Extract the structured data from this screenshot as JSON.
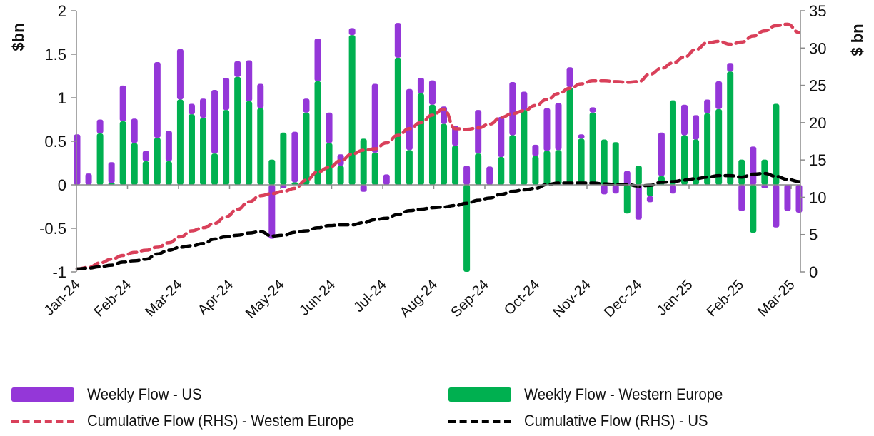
{
  "chart_data": {
    "type": "bar",
    "subtype": "stacked bar with dual-axis dashed lines",
    "title": "",
    "ylabel_left": "$bn",
    "ylabel_right": "$ bn",
    "ylim_left": [
      -1,
      2
    ],
    "yticks_left": [
      -1,
      -0.5,
      0,
      0.5,
      1,
      1.5,
      2
    ],
    "ytick_labels_left": [
      "-1",
      "-0.5",
      "0",
      "0.5",
      "1",
      "1.5",
      "2"
    ],
    "ylim_right": [
      0,
      35
    ],
    "yticks_right": [
      0,
      5,
      10,
      15,
      20,
      25,
      30,
      35
    ],
    "ytick_labels_right": [
      "0",
      "5",
      "10",
      "15",
      "20",
      "25",
      "30",
      "35"
    ],
    "x_month_labels": [
      "Jan-24",
      "Feb-24",
      "Mar-24",
      "Apr-24",
      "May-24",
      "Jun-24",
      "Jul-24",
      "Aug-24",
      "Sep-24",
      "Oct-24",
      "Nov-24",
      "Dec-24",
      "Jan-25",
      "Feb-25",
      "Mar-25"
    ],
    "weeks": 64,
    "grid": false,
    "legend_position": "bottom",
    "series": [
      {
        "name": "Weekly Flow - US",
        "type": "bar",
        "axis": "left",
        "color": "#9437D8",
        "values": [
          0.58,
          0.13,
          0.16,
          0.24,
          0.41,
          0.28,
          0.12,
          0.87,
          0.35,
          0.58,
          0.12,
          0.22,
          0.73,
          0.37,
          0.18,
          0.47,
          0.28,
          -0.62,
          -0.04,
          0.58,
          0.16,
          0.49,
          0.35,
          0.13,
          0.08,
          -0.08,
          0.79,
          0.12,
          0.4,
          0.7,
          0.18,
          0.28,
          0.2,
          0.23,
          0.22,
          0.5,
          0.21,
          0.46,
          0.61,
          0.21,
          0.13,
          0.49,
          0.54,
          0.23,
          0.05,
          0.06,
          -0.11,
          -0.1,
          0.16,
          -0.4,
          -0.07,
          0.5,
          -0.1,
          0.35,
          0.28,
          0.16,
          0.32,
          0.1,
          -0.3,
          0.44,
          -0.04,
          -0.49,
          -0.3,
          -0.32
        ]
      },
      {
        "name": "Weekly Flow - Western Europe",
        "type": "bar",
        "axis": "left",
        "color": "#00B050",
        "values": [
          0.0,
          0.0,
          0.59,
          0.02,
          0.73,
          0.48,
          0.27,
          0.54,
          0.27,
          0.98,
          0.81,
          0.77,
          0.36,
          0.86,
          1.24,
          0.96,
          0.88,
          0.29,
          0.6,
          0.03,
          0.83,
          1.19,
          0.48,
          0.22,
          1.72,
          0.53,
          0.37,
          0.0,
          1.46,
          0.4,
          1.05,
          0.92,
          0.7,
          0.45,
          -1.0,
          0.36,
          0.0,
          0.32,
          0.57,
          0.86,
          0.33,
          0.39,
          0.4,
          1.12,
          0.53,
          0.83,
          0.52,
          0.49,
          -0.33,
          0.22,
          -0.13,
          0.1,
          0.97,
          0.57,
          0.52,
          0.82,
          0.87,
          1.3,
          0.29,
          -0.55,
          0.29,
          0.93,
          0.0,
          0.0
        ]
      },
      {
        "name": "Cumulative Flow (RHS) - Westem Europe",
        "type": "line",
        "style": "dashed",
        "axis": "right",
        "color": "#D9405A",
        "values": [
          0.4,
          0.6,
          1.2,
          1.7,
          2.2,
          2.6,
          2.9,
          3.3,
          3.9,
          4.7,
          5.5,
          5.9,
          6.5,
          7.4,
          8.4,
          9.4,
          10.2,
          10.5,
          10.8,
          11.2,
          12.3,
          13.4,
          14.0,
          14.9,
          15.8,
          16.3,
          16.5,
          17.3,
          18.3,
          19.2,
          20.0,
          21.0,
          21.8,
          19.2,
          19.1,
          19.3,
          19.8,
          20.7,
          21.2,
          21.6,
          22.3,
          23.1,
          23.9,
          24.6,
          25.2,
          25.6,
          25.6,
          25.5,
          25.4,
          25.5,
          26.5,
          27.3,
          28.0,
          28.8,
          29.8,
          30.7,
          30.9,
          30.5,
          30.8,
          31.6,
          32.3,
          33.0,
          33.2,
          32.1
        ]
      },
      {
        "name": "Cumulative Flow (RHS) - US",
        "type": "line",
        "style": "dashed",
        "axis": "right",
        "color": "#000000",
        "values": [
          0.4,
          0.5,
          0.7,
          0.9,
          1.3,
          1.5,
          1.7,
          2.4,
          2.9,
          3.3,
          3.5,
          3.8,
          4.4,
          4.7,
          4.9,
          5.2,
          5.4,
          4.8,
          4.9,
          5.3,
          5.5,
          5.9,
          6.2,
          6.3,
          6.3,
          6.6,
          7.0,
          7.2,
          7.7,
          8.2,
          8.4,
          8.6,
          8.7,
          8.9,
          9.2,
          9.6,
          9.9,
          10.4,
          10.8,
          11.0,
          11.2,
          11.7,
          11.9,
          11.9,
          11.9,
          11.9,
          11.8,
          11.7,
          11.7,
          11.5,
          11.6,
          12.0,
          12.1,
          12.3,
          12.5,
          12.7,
          12.9,
          12.9,
          12.7,
          13.1,
          13.2,
          12.8,
          12.4,
          12.1
        ]
      }
    ]
  },
  "legend": {
    "items": [
      {
        "label": "Weekly Flow - US",
        "kind": "box",
        "color": "#9437D8"
      },
      {
        "label": "Weekly Flow - Western Europe",
        "kind": "box",
        "color": "#00B050"
      },
      {
        "label": "Cumulative Flow (RHS) - Westem Europe",
        "kind": "dash",
        "color": "#D9405A"
      },
      {
        "label": "Cumulative Flow (RHS) - US",
        "kind": "dash",
        "color": "#000000"
      }
    ]
  }
}
